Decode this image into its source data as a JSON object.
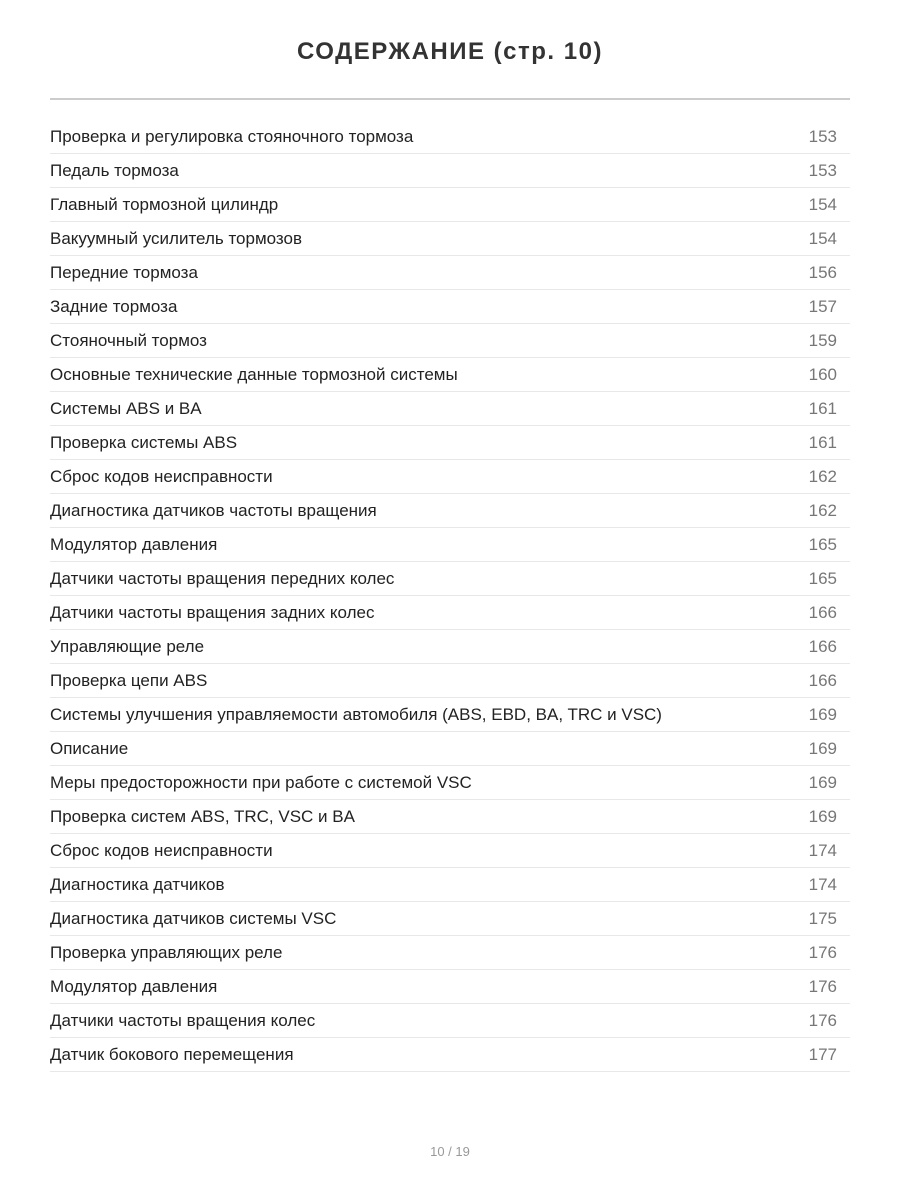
{
  "title": "СОДЕРЖАНИЕ (стр. 10)",
  "entries": [
    {
      "label": "Проверка и регулировка стояночного тормоза",
      "page": "153"
    },
    {
      "label": "Педаль тормоза",
      "page": "153"
    },
    {
      "label": "Главный тормозной цилиндр",
      "page": "154"
    },
    {
      "label": "Вакуумный усилитель тормозов",
      "page": "154"
    },
    {
      "label": "Передние тормоза",
      "page": "156"
    },
    {
      "label": "Задние тормоза",
      "page": "157"
    },
    {
      "label": "Стояночный тормоз",
      "page": "159"
    },
    {
      "label": "Основные технические данные тормозной системы",
      "page": "160"
    },
    {
      "label": "Системы ABS и BA",
      "page": "161"
    },
    {
      "label": "Проверка системы ABS",
      "page": "161"
    },
    {
      "label": "Сброс кодов неисправности",
      "page": "162"
    },
    {
      "label": "Диагностика датчиков частоты вращения",
      "page": "162"
    },
    {
      "label": "Модулятор давления",
      "page": "165"
    },
    {
      "label": "Датчики частоты вращения передних колес",
      "page": "165"
    },
    {
      "label": "Датчики частоты вращения задних колес",
      "page": "166"
    },
    {
      "label": "Управляющие реле",
      "page": "166"
    },
    {
      "label": "Проверка цепи ABS",
      "page": "166"
    },
    {
      "label": "Системы улучшения управляемости автомобиля (ABS, EBD, BA, TRC и VSC)",
      "page": "169"
    },
    {
      "label": "Описание",
      "page": "169"
    },
    {
      "label": "Меры предосторожности при работе с системой VSC",
      "page": "169"
    },
    {
      "label": "Проверка систем ABS, TRC, VSC и BA",
      "page": "169"
    },
    {
      "label": "Сброс кодов неисправности",
      "page": "174"
    },
    {
      "label": "Диагностика датчиков",
      "page": "174"
    },
    {
      "label": "Диагностика датчиков системы VSC",
      "page": "175"
    },
    {
      "label": "Проверка управляющих реле",
      "page": "176"
    },
    {
      "label": "Модулятор давления",
      "page": "176"
    },
    {
      "label": "Датчики частоты вращения колес",
      "page": "176"
    },
    {
      "label": "Датчик бокового перемещения",
      "page": "177"
    }
  ],
  "footer": {
    "pagination": "10 / 19"
  }
}
